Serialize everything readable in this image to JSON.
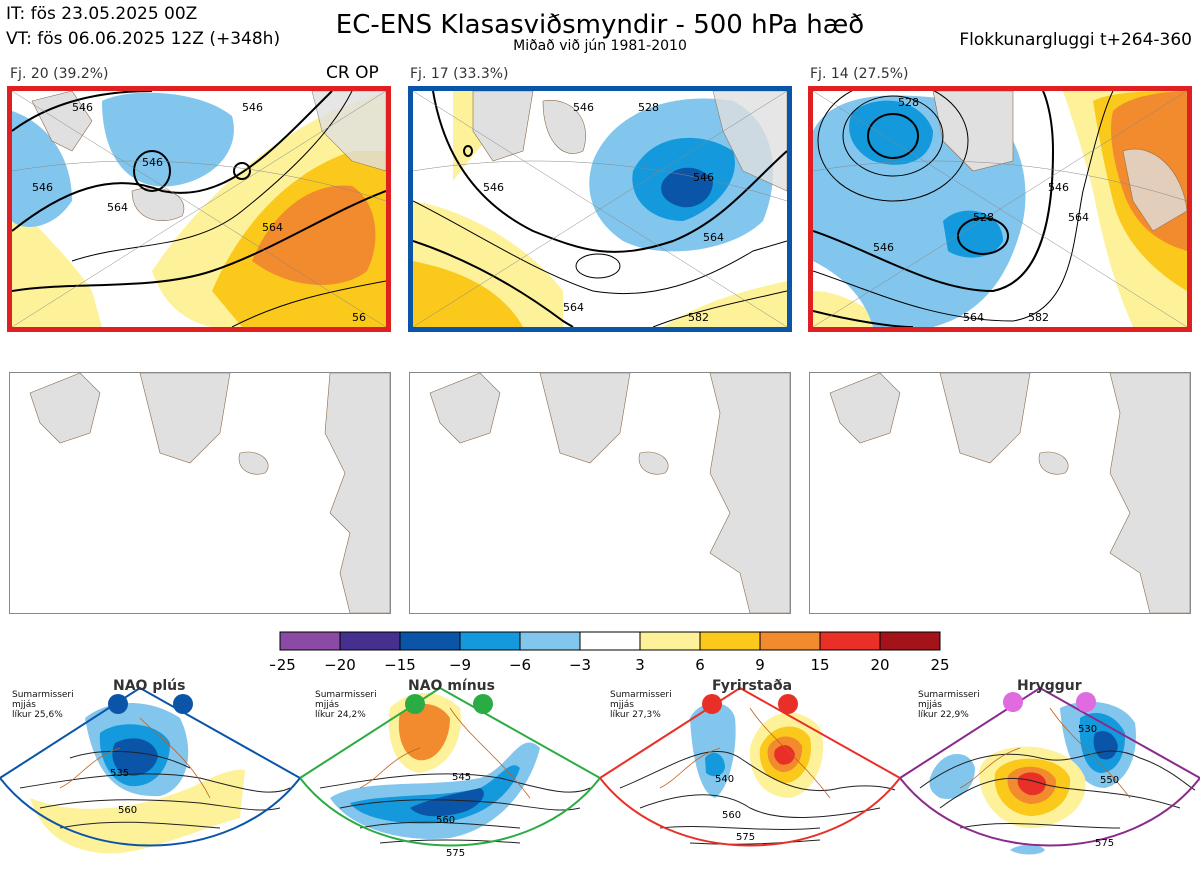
{
  "header": {
    "init_time": "IT: fös 23.05.2025 00Z",
    "valid_time": "VT: fös 06.06.2025 12Z  (+348h)",
    "title": "EC-ENS Klasasviðsmyndir - 500 hPa hæð",
    "subtitle": "Miðað við jún 1981-2010",
    "cluster_window": "Flokkunargluggi t+264-360"
  },
  "clusters": [
    {
      "label": "Fj. 20 (39.2%)",
      "members": 20,
      "percent": 39.2,
      "frame_color": "#e02020",
      "op_marker": "CR OP",
      "contour_labels": [
        "546",
        "546",
        "546",
        "546",
        "564",
        "564",
        "56"
      ]
    },
    {
      "label": "Fj. 17 (33.3%)",
      "members": 17,
      "percent": 33.3,
      "frame_color": "#0a55a8",
      "contour_labels": [
        "546",
        "546",
        "546",
        "528",
        "564",
        "564",
        "582"
      ]
    },
    {
      "label": "Fj. 14 (27.5%)",
      "members": 14,
      "percent": 27.5,
      "frame_color": "#e02020",
      "contour_labels": [
        "528",
        "546",
        "528",
        "546",
        "564",
        "564",
        "582"
      ]
    }
  ],
  "chart_data": {
    "type": "heatmap",
    "title": "EC-ENS Klasasviðsmyndir - 500 hPa hæð",
    "variable": "500 hPa height anomaly (dam), contours in dam",
    "colorbar": {
      "ticks": [
        "−25",
        "−20",
        "−15",
        "−9",
        "−6",
        "−3",
        "3",
        "6",
        "9",
        "15",
        "20",
        "25"
      ],
      "bounds": [
        -25,
        -20,
        -15,
        -9,
        -6,
        -3,
        3,
        6,
        9,
        15,
        20,
        25
      ],
      "colors": [
        "#8b4aa3",
        "#45308f",
        "#0a55a8",
        "#1499dc",
        "#82c6ee",
        "#ffffff",
        "#fdf29a",
        "#fbc91c",
        "#f28a2e",
        "#e83028",
        "#a4131a"
      ]
    },
    "regimes": [
      {
        "name": "NAO plús",
        "season": "Sumarmisseri",
        "smoothing": "mjjás",
        "likelihood": "líkur 25,6%",
        "percent": 25.6,
        "color": "#0a55a8",
        "contour_labels": [
          "535",
          "560"
        ]
      },
      {
        "name": "NAO mínus",
        "season": "Sumarmisseri",
        "smoothing": "mjjás",
        "likelihood": "líkur 24,2%",
        "percent": 24.2,
        "color": "#2bab43",
        "contour_labels": [
          "545",
          "560",
          "575"
        ]
      },
      {
        "name": "Fyrirstaða",
        "season": "Sumarmisseri",
        "smoothing": "mjjás",
        "likelihood": "líkur 27,3%",
        "percent": 27.3,
        "color": "#e83028",
        "contour_labels": [
          "540",
          "560",
          "575"
        ]
      },
      {
        "name": "Hryggur",
        "season": "Sumarmisseri",
        "smoothing": "mjjás",
        "likelihood": "líkur 22,9%",
        "percent": 22.9,
        "color": "#e06ae0",
        "contour_labels": [
          "530",
          "550",
          "575"
        ]
      }
    ]
  }
}
